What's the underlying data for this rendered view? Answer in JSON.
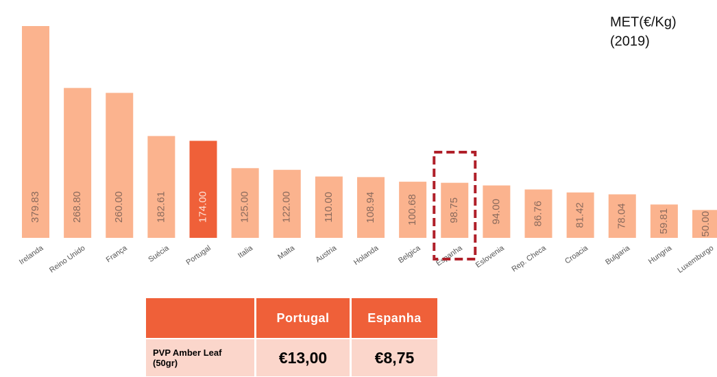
{
  "chart_data": {
    "type": "bar",
    "title": "MET(€/Kg)",
    "subtitle": "(2019)",
    "categories": [
      "Irelanda",
      "Reino Unido",
      "França",
      "Suécia",
      "Portugal",
      "Italia",
      "Malta",
      "Austria",
      "Holanda",
      "Belgica",
      "Espanha",
      "Eslovenia",
      "Rep. Checa",
      "Croacia",
      "Bulgaria",
      "Hungria",
      "Luxemburgo"
    ],
    "values": [
      379.83,
      268.8,
      260,
      182.61,
      174,
      125,
      122,
      110,
      108.94,
      100.68,
      98.75,
      94,
      86.76,
      81.42,
      78.04,
      59.81,
      50
    ],
    "value_labels": [
      "379.83",
      "268.80",
      "260.00",
      "182.61",
      "174.00",
      "125.00",
      "122.00",
      "110.00",
      "108.94",
      "100.68",
      "98.75",
      "94.00",
      "86.76",
      "81.42",
      "78.04",
      "59.81",
      "50.00"
    ],
    "colors": [
      "#fbb38e",
      "#fbb38e",
      "#fbb38e",
      "#fbb38e",
      "#ef6039",
      "#fbb38e",
      "#fbb38e",
      "#fbb38e",
      "#fbb38e",
      "#fbb38e",
      "#fbb38e",
      "#fbb38e",
      "#fbb38e",
      "#fbb38e",
      "#fbb38e",
      "#fbb38e",
      "#fbb38e"
    ],
    "outlined": "Espanha"
  },
  "table": {
    "columns": [
      "Portugal",
      "Espanha"
    ],
    "rows": [
      {
        "label": "PVP Amber Leaf (50gr)",
        "values": [
          "€13,00",
          "€8,75"
        ]
      }
    ]
  }
}
